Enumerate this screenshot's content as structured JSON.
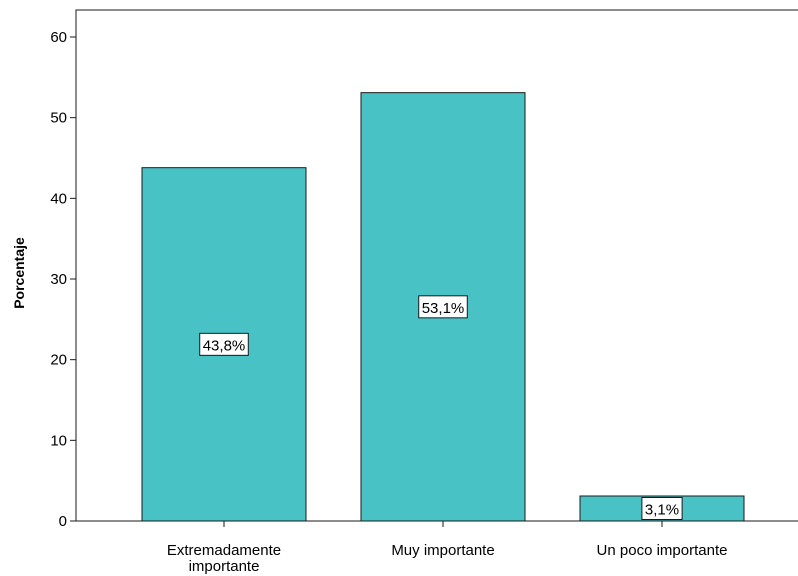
{
  "chart_data": {
    "type": "bar",
    "categories": [
      [
        "Extremadamente",
        "importante"
      ],
      [
        "Muy importante"
      ],
      [
        "Un poco importante"
      ]
    ],
    "values": [
      43.8,
      53.1,
      3.1
    ],
    "data_labels": [
      "43,8%",
      "53,1%",
      "3,1%"
    ],
    "title": "",
    "xlabel": "",
    "ylabel": "Porcentaje",
    "ylim": [
      0,
      60
    ],
    "yticks": [
      0,
      10,
      20,
      30,
      40,
      50,
      60
    ],
    "ytick_labels": [
      "0",
      "10",
      "20",
      "30",
      "40",
      "50",
      "60"
    ],
    "grid": false,
    "legend": "none",
    "bar_color": "#48c2c5",
    "bar_edge_color": "#1a1a1a"
  }
}
